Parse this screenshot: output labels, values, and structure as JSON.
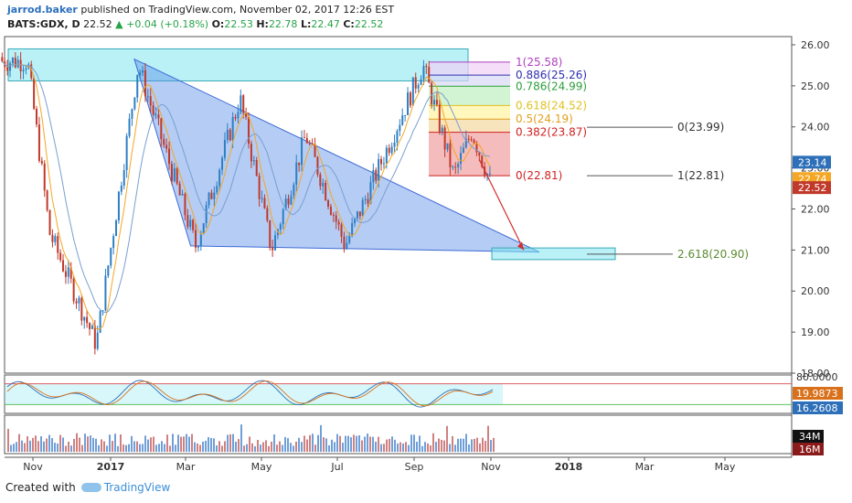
{
  "header": {
    "author": "jarrod.baker",
    "published": "published on TradingView.com, November 02, 2017 12:26 EST",
    "symbol": "BATS:GDX, D",
    "last": "22.52",
    "change": "+0.04 (+0.18%)",
    "o_label": "O:",
    "o_val": "22.53",
    "h_label": "H:",
    "h_val": "22.78",
    "l_label": "L:",
    "l_val": "22.47",
    "c_label": "C:",
    "c_val": "22.52"
  },
  "footer": {
    "created_with": "Created with",
    "brand": "TradingView"
  },
  "colors": {
    "up": "#2d7fc4",
    "down": "#c0392b",
    "triangle": "#5b8ee6",
    "zone": "#7fe6f0",
    "fib": [
      "#f0a0a0",
      "#f3d7a0",
      "#fff4a0",
      "#bff0bf",
      "#d9d9f5",
      "#f0d0f5"
    ]
  },
  "chart_data": [
    {
      "type": "candlestick",
      "symbol": "BATS:GDX",
      "interval": "D",
      "ylim": [
        18.0,
        26.2
      ],
      "yticks": [
        "26.00",
        "25.00",
        "24.00",
        "23.00",
        "22.00",
        "21.00",
        "20.00",
        "19.00",
        "18.00"
      ],
      "xticks": [
        "Nov",
        "2017",
        "Mar",
        "May",
        "Jul",
        "Sep",
        "Nov",
        "2018",
        "Mar",
        "May"
      ],
      "key_points": [
        {
          "date": "Oct 27 2016",
          "close": 25.6
        },
        {
          "date": "Nov 14 2016",
          "close": 21.4
        },
        {
          "date": "Dec 20 2016",
          "close": 18.7
        },
        {
          "date": "Jan 23 2017",
          "close": 25.5
        },
        {
          "date": "Mar 09 2017",
          "close": 21.1
        },
        {
          "date": "Apr 14 2017",
          "close": 24.7
        },
        {
          "date": "May 09 2017",
          "close": 21.0
        },
        {
          "date": "Jun 06 2017",
          "close": 23.8
        },
        {
          "date": "Jul 07 2017",
          "close": 21.1
        },
        {
          "date": "Sep 08 2017",
          "close": 25.5
        },
        {
          "date": "Oct 02 2017",
          "close": 22.8
        },
        {
          "date": "Oct 16 2017",
          "close": 23.9
        },
        {
          "date": "Nov 02 2017",
          "close": 22.52
        }
      ],
      "price_labels": [
        {
          "text": "23.14",
          "color": "#2d6fb8"
        },
        {
          "text": "22.74",
          "color": "#f5a623"
        },
        {
          "text": "22.52",
          "color": "#c0392b"
        }
      ],
      "fib_retracement": [
        {
          "label": "1(25.58)",
          "color": "#b040c0"
        },
        {
          "label": "0.886(25.26)",
          "color": "#3030b0"
        },
        {
          "label": "0.786(24.99)",
          "color": "#2e9e3e"
        },
        {
          "label": "0.618(24.52)",
          "color": "#e0c020"
        },
        {
          "label": "0.5(24.19)",
          "color": "#e0a020"
        },
        {
          "label": "0.382(23.87)",
          "color": "#d02020"
        },
        {
          "label": "0(22.81)",
          "color": "#d02020"
        }
      ],
      "fib_extension": [
        {
          "label": "0(23.99)",
          "color": "#333333"
        },
        {
          "label": "1(22.81)",
          "color": "#333333"
        },
        {
          "label": "2.618(20.90)",
          "color": "#5a8a30"
        }
      ]
    },
    {
      "type": "line",
      "name": "Stochastic",
      "ylim": [
        0,
        100
      ],
      "price_labels": [
        {
          "text": "80.0000",
          "color": "#444444"
        },
        {
          "text": "19.9873",
          "color": "#d9711c"
        },
        {
          "text": "16.2608",
          "color": "#2d6fb8"
        }
      ]
    },
    {
      "type": "bar",
      "name": "Volume",
      "price_labels": [
        {
          "text": "34M",
          "color": "#111111"
        },
        {
          "text": "16M",
          "color": "#8b1a1a"
        }
      ]
    }
  ]
}
